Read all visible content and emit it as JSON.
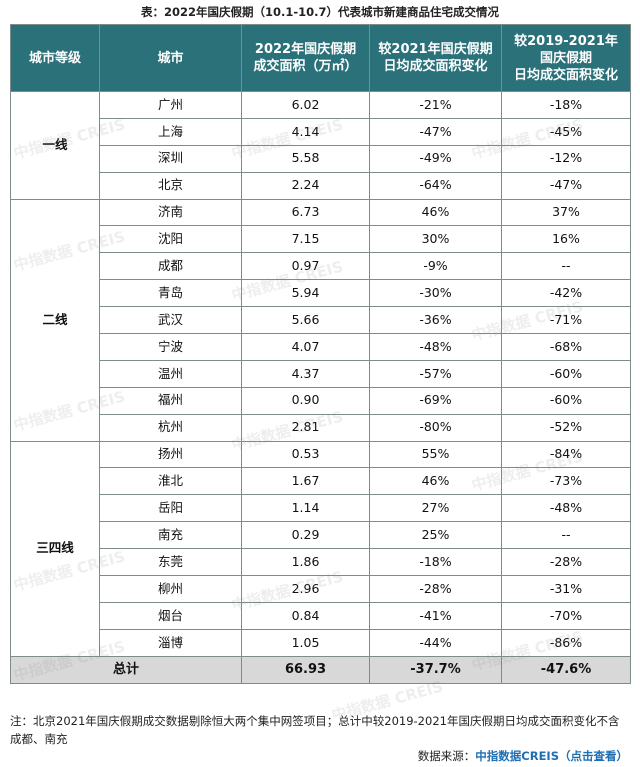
{
  "title": "表：2022年国庆假期（10.1-10.7）代表城市新建商品住宅成交情况",
  "header": {
    "tier": "城市等级",
    "city": "城市",
    "area": [
      "2022年国庆假期",
      "成交面积（万㎡）"
    ],
    "vs2021": [
      "较2021年国庆假期",
      "日均成交面积变化"
    ],
    "vs2019": [
      "较2019-2021年",
      "国庆假期",
      "日均成交面积变化"
    ]
  },
  "tiers": [
    {
      "label": "一线",
      "rows": [
        {
          "city": "广州",
          "area": "6.02",
          "vs2021": "-21%",
          "vs2019": "-18%"
        },
        {
          "city": "上海",
          "area": "4.14",
          "vs2021": "-47%",
          "vs2019": "-45%"
        },
        {
          "city": "深圳",
          "area": "5.58",
          "vs2021": "-49%",
          "vs2019": "-12%"
        },
        {
          "city": "北京",
          "area": "2.24",
          "vs2021": "-64%",
          "vs2019": "-47%"
        }
      ]
    },
    {
      "label": "二线",
      "rows": [
        {
          "city": "济南",
          "area": "6.73",
          "vs2021": "46%",
          "vs2019": "37%"
        },
        {
          "city": "沈阳",
          "area": "7.15",
          "vs2021": "30%",
          "vs2019": "16%"
        },
        {
          "city": "成都",
          "area": "0.97",
          "vs2021": "-9%",
          "vs2019": "--"
        },
        {
          "city": "青岛",
          "area": "5.94",
          "vs2021": "-30%",
          "vs2019": "-42%"
        },
        {
          "city": "武汉",
          "area": "5.66",
          "vs2021": "-36%",
          "vs2019": "-71%"
        },
        {
          "city": "宁波",
          "area": "4.07",
          "vs2021": "-48%",
          "vs2019": "-68%"
        },
        {
          "city": "温州",
          "area": "4.37",
          "vs2021": "-57%",
          "vs2019": "-60%"
        },
        {
          "city": "福州",
          "area": "0.90",
          "vs2021": "-69%",
          "vs2019": "-60%"
        },
        {
          "city": "杭州",
          "area": "2.81",
          "vs2021": "-80%",
          "vs2019": "-52%"
        }
      ]
    },
    {
      "label": "三四线",
      "rows": [
        {
          "city": "扬州",
          "area": "0.53",
          "vs2021": "55%",
          "vs2019": "-84%"
        },
        {
          "city": "淮北",
          "area": "1.67",
          "vs2021": "46%",
          "vs2019": "-73%"
        },
        {
          "city": "岳阳",
          "area": "1.14",
          "vs2021": "27%",
          "vs2019": "-48%"
        },
        {
          "city": "南充",
          "area": "0.29",
          "vs2021": "25%",
          "vs2019": "--"
        },
        {
          "city": "东莞",
          "area": "1.86",
          "vs2021": "-18%",
          "vs2019": "-28%"
        },
        {
          "city": "柳州",
          "area": "2.96",
          "vs2021": "-28%",
          "vs2019": "-31%"
        },
        {
          "city": "烟台",
          "area": "0.84",
          "vs2021": "-41%",
          "vs2019": "-70%"
        },
        {
          "city": "淄博",
          "area": "1.05",
          "vs2021": "-44%",
          "vs2019": "-86%"
        }
      ]
    }
  ],
  "total": {
    "label": "总计",
    "area": "66.93",
    "vs2021": "-37.7%",
    "vs2019": "-47.6%"
  },
  "note": "注：北京2021年国庆假期成交数据剔除恒大两个集中网签项目；总计中较2019-2021年国庆假期日均成交面积变化不含成都、南充",
  "source": {
    "prefix": "数据来源：",
    "brand": "中指数据CREIS",
    "link": "（点击查看）"
  },
  "watermark": "中指数据 CREIS"
}
